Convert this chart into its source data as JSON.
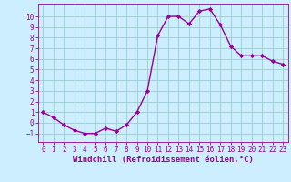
{
  "x": [
    0,
    1,
    2,
    3,
    4,
    5,
    6,
    7,
    8,
    9,
    10,
    11,
    12,
    13,
    14,
    15,
    16,
    17,
    18,
    19,
    20,
    21,
    22,
    23
  ],
  "y": [
    1.0,
    0.5,
    -0.2,
    -0.7,
    -1.0,
    -1.0,
    -0.5,
    -0.8,
    -0.2,
    1.0,
    3.0,
    8.2,
    10.0,
    10.0,
    9.3,
    10.5,
    10.7,
    9.2,
    7.2,
    6.3,
    6.3,
    6.3,
    5.8,
    5.5
  ],
  "line_color": "#990099",
  "marker": "D",
  "marker_size": 2.2,
  "bg_color": "#cceeff",
  "grid_color": "#99cccc",
  "xlabel": "Windchill (Refroidissement éolien,°C)",
  "xlabel_color": "#990099",
  "xlabel_fontsize": 6.5,
  "tick_color": "#990099",
  "ylim": [
    -1.8,
    11.2
  ],
  "xlim": [
    -0.5,
    23.5
  ],
  "yticks": [
    -1,
    0,
    1,
    2,
    3,
    4,
    5,
    6,
    7,
    8,
    9,
    10
  ],
  "xticks": [
    0,
    1,
    2,
    3,
    4,
    5,
    6,
    7,
    8,
    9,
    10,
    11,
    12,
    13,
    14,
    15,
    16,
    17,
    18,
    19,
    20,
    21,
    22,
    23
  ],
  "tick_fontsize": 5.5,
  "line_width": 1.0
}
